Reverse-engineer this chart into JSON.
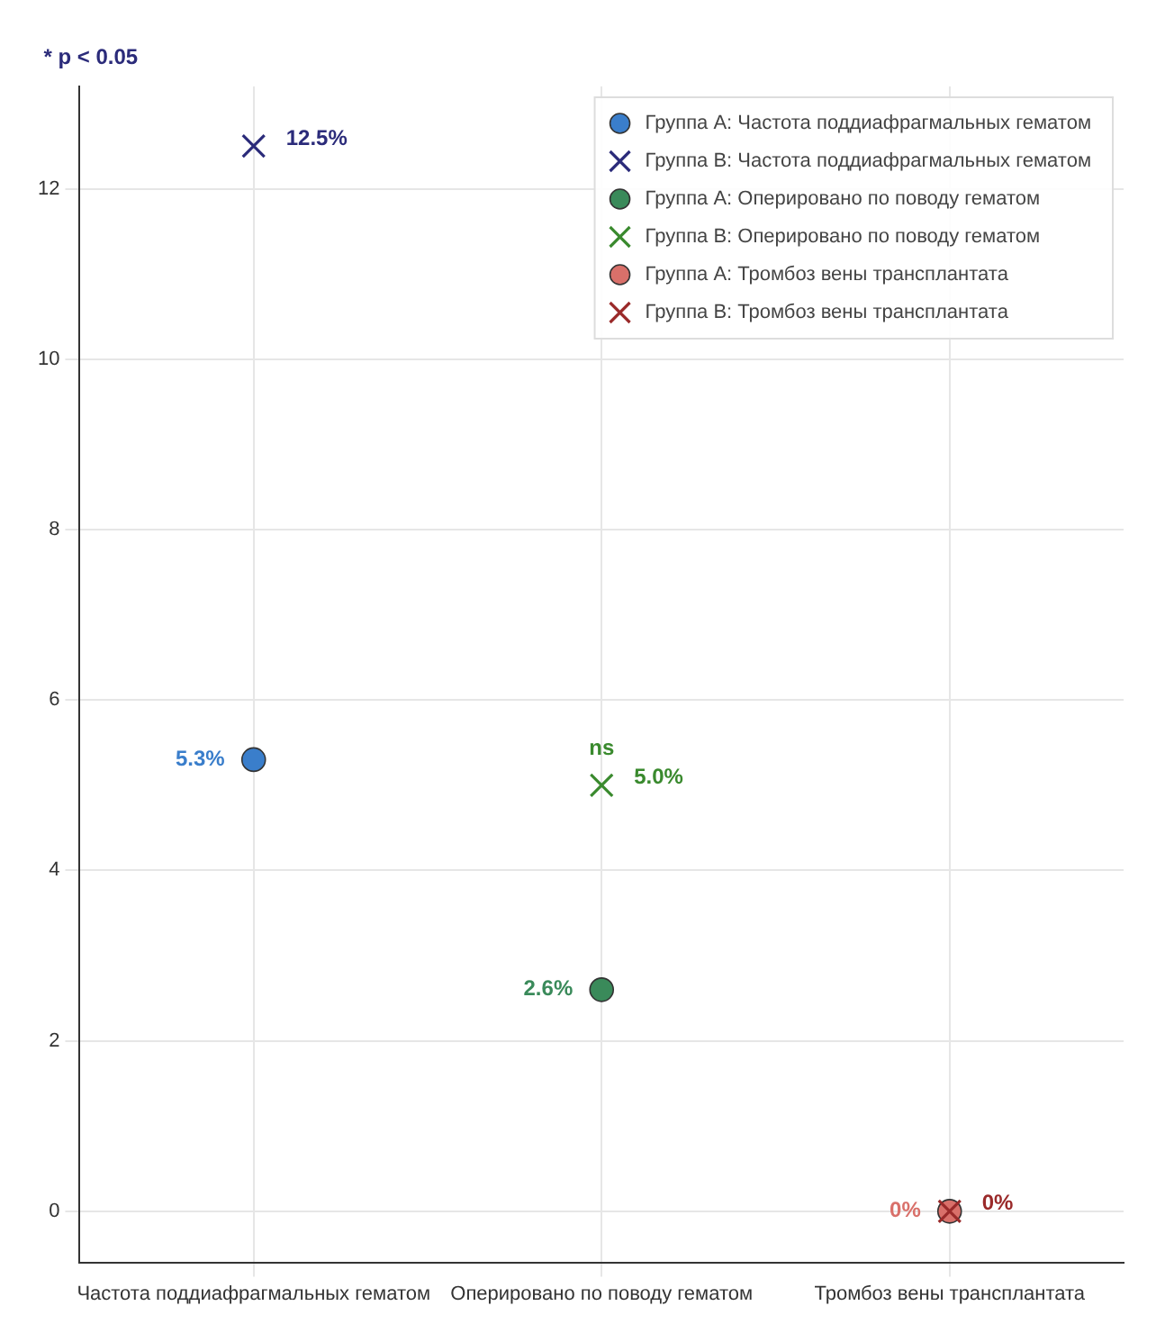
{
  "chart_data": {
    "type": "scatter",
    "categories": [
      "Частота поддиафрагмальных гематом",
      "Оперировано по поводу гематом",
      "Тромбоз вены трансплантата"
    ],
    "ylim": [
      -0.6,
      13.2
    ],
    "yticks": [
      0,
      2,
      4,
      6,
      8,
      10,
      12
    ],
    "grid": true,
    "legend": "top right",
    "series": [
      {
        "name": "Группа A: Частота поддиафрагмальных гематом",
        "color": "#3a7ecb",
        "marker": "circle",
        "values": [
          5.3,
          null,
          null
        ],
        "value_labels": [
          "5.3%",
          null,
          null
        ]
      },
      {
        "name": "Группа B: Частота поддиафрагмальных гематом",
        "color": "#2b2b7a",
        "marker": "cross",
        "values": [
          12.5,
          null,
          null
        ],
        "value_labels": [
          "12.5%",
          null,
          null
        ]
      },
      {
        "name": "Группа A: Оперировано по поводу гематом",
        "color": "#3a8a5a",
        "marker": "circle",
        "values": [
          null,
          2.6,
          null
        ],
        "value_labels": [
          null,
          "2.6%",
          null
        ]
      },
      {
        "name": "Группа B: Оперировано по поводу гематом",
        "color": "#3a8a2e",
        "marker": "cross",
        "values": [
          null,
          5.0,
          null
        ],
        "value_labels": [
          null,
          "5.0%",
          null
        ]
      },
      {
        "name": "Группа A: Тромбоз вены трансплантата",
        "color": "#d9706a",
        "marker": "circle",
        "values": [
          null,
          null,
          0
        ],
        "value_labels": [
          null,
          null,
          "0%"
        ]
      },
      {
        "name": "Группа B: Тромбоз вены трансплантата",
        "color": "#9a2a2a",
        "marker": "cross",
        "values": [
          null,
          null,
          0
        ],
        "value_labels": [
          null,
          null,
          "0%"
        ]
      }
    ],
    "annotations": [
      "* p < 0.05",
      {
        "text": "ns",
        "x": "Оперировано по поводу гематом",
        "y": 5.0
      }
    ]
  }
}
